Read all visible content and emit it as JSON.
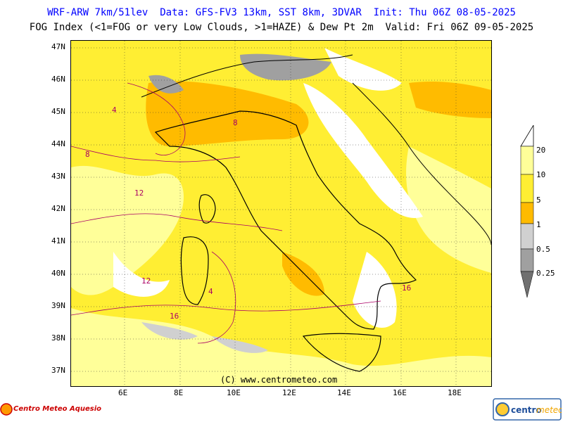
{
  "header": {
    "line1": "WRF-ARW 7km/51lev  Data: GFS-FV3 13km, SST 8km, 3DVAR  Init: Thu 06Z 08-05-2025",
    "line2": "FOG Index (<1=FOG or very Low Clouds, >1=HAZE) & Dew Pt 2m  Valid: Fri 06Z 09-05-2025"
  },
  "axes": {
    "lat_labels": [
      "47N",
      "46N",
      "45N",
      "44N",
      "43N",
      "42N",
      "41N",
      "40N",
      "39N",
      "38N",
      "37N"
    ],
    "lon_labels": [
      "6E",
      "8E",
      "10E",
      "12E",
      "14E",
      "16E",
      "18E"
    ]
  },
  "legend": {
    "labels": [
      "20",
      "10",
      "5",
      "1",
      "0.5",
      "0.25"
    ],
    "colors": [
      "#ffff99",
      "#ffee33",
      "#ffbb00",
      "#d0d0d0",
      "#a0a0a0",
      "#707070"
    ]
  },
  "contour_labels": [
    "4",
    "8",
    "12",
    "16"
  ],
  "copyright": "(C) www.centrometeo.com",
  "logos": {
    "left": "Centro Meteo Aquesio",
    "right_a": "centro",
    "right_b": "meteo"
  }
}
